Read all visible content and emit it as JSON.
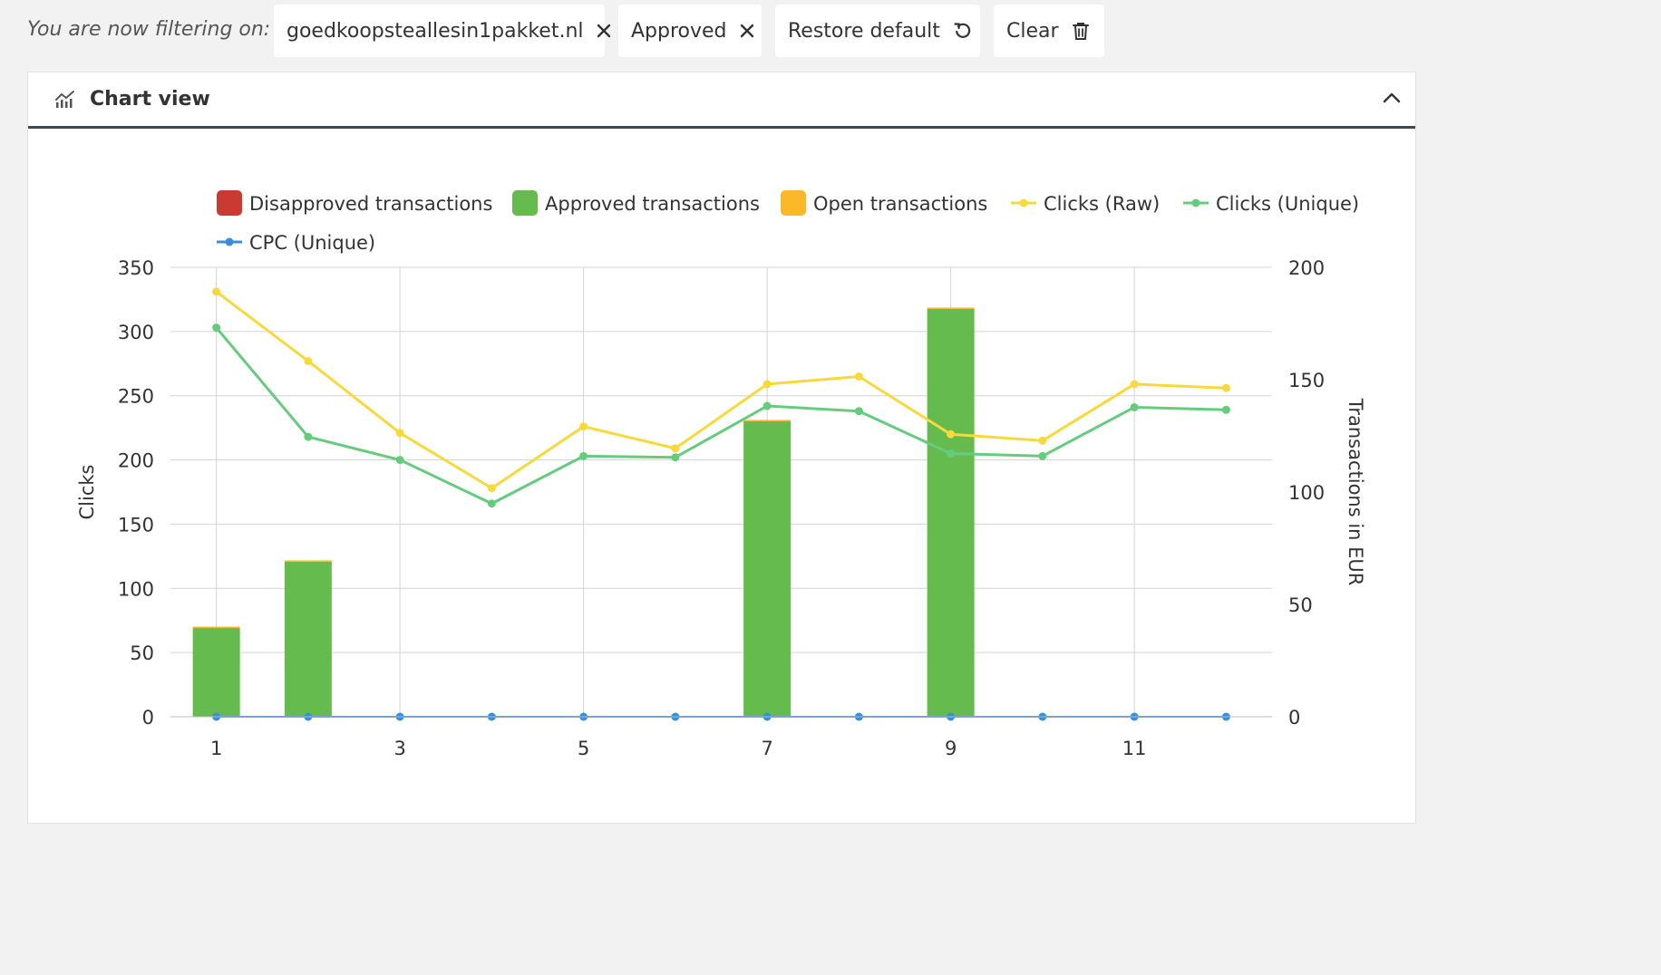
{
  "filters": {
    "label": "You are now filtering on:",
    "chips": [
      {
        "label": "goedkoopsteallesin1pakket.nl",
        "icon": "close-icon"
      },
      {
        "label": "Approved",
        "icon": "close-icon"
      },
      {
        "label": "Restore default",
        "icon": "restore-icon"
      },
      {
        "label": "Clear",
        "icon": "trash-icon"
      }
    ]
  },
  "panel": {
    "title": "Chart view",
    "icon": "chart-icon",
    "collapse_icon": "chevron-up-icon"
  },
  "colors": {
    "disapproved": "#c93a32",
    "approved": "#66bb4f",
    "open": "#fbb829",
    "clicks_raw": "#f8d93c",
    "clicks_unique": "#66cc7d",
    "cpc_unique": "#3a8fd9",
    "grid": "#d3d3d3"
  },
  "chart_data": {
    "type": "bar",
    "x": [
      1,
      2,
      3,
      4,
      5,
      6,
      7,
      8,
      9,
      10,
      11,
      12
    ],
    "x_tick_labels": [
      "1",
      "3",
      "5",
      "7",
      "9",
      "11"
    ],
    "x_tick_values": [
      1,
      3,
      5,
      7,
      9,
      11
    ],
    "y_left": {
      "label": "Clicks",
      "range": [
        0,
        350
      ],
      "ticks": [
        0,
        50,
        100,
        150,
        200,
        250,
        300,
        350
      ]
    },
    "y_right": {
      "label": "Transactions in EUR",
      "range": [
        0,
        200
      ],
      "ticks": [
        0,
        50,
        100,
        150,
        200
      ]
    },
    "legend_position": "top",
    "grid": true,
    "series": [
      {
        "name": "Disapproved transactions",
        "type": "bar",
        "axis": "right",
        "marker": "square",
        "values": [
          0,
          0,
          0,
          0,
          0,
          0,
          0,
          0,
          0,
          0,
          0,
          0
        ]
      },
      {
        "name": "Approved transactions",
        "type": "bar",
        "axis": "right",
        "marker": "square",
        "values": [
          39.5,
          69,
          0,
          0,
          0,
          0,
          131.5,
          0,
          181.5,
          0,
          0,
          0
        ]
      },
      {
        "name": "Open transactions",
        "type": "bar",
        "axis": "right",
        "marker": "square",
        "values": [
          0.6,
          0.6,
          0,
          0,
          0,
          0,
          0.6,
          0,
          0.6,
          0,
          0,
          0
        ]
      },
      {
        "name": "Clicks (Raw)",
        "type": "line",
        "axis": "left",
        "marker": "line",
        "values": [
          331,
          277,
          221,
          178,
          226,
          209,
          259,
          265,
          220,
          215,
          259,
          256
        ]
      },
      {
        "name": "Clicks (Unique)",
        "type": "line",
        "axis": "left",
        "marker": "line",
        "values": [
          303,
          218,
          200,
          166,
          203,
          202,
          242,
          238,
          205,
          203,
          241,
          239
        ]
      },
      {
        "name": "CPC (Unique)",
        "type": "line",
        "axis": "left",
        "marker": "line",
        "values": [
          0,
          0,
          0,
          0,
          0,
          0,
          0,
          0,
          0,
          0,
          0,
          0
        ]
      }
    ]
  }
}
